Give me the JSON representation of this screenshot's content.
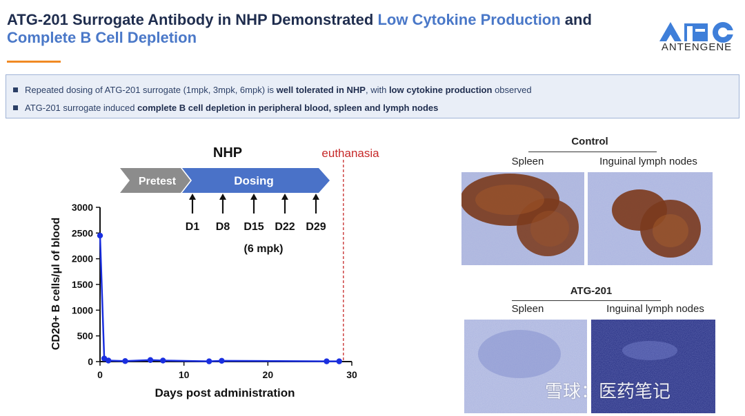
{
  "header": {
    "title_part1": "ATG-201 Surrogate Antibody in NHP Demonstrated ",
    "title_highlight1": "Low Cytokine Production",
    "title_part2": " and ",
    "title_highlight2": "Complete B Cell Depletion",
    "logo_text": "ANTENGENE",
    "accent_color": "#f08a24",
    "highlight_color": "#4a78c8"
  },
  "bullets": [
    {
      "pre": "Repeated dosing of ATG-201 surrogate (1mpk, 3mpk, 6mpk) is ",
      "bold1": "well tolerated in NHP",
      "mid": ", with ",
      "bold2": "low cytokine production",
      "post": " observed"
    },
    {
      "pre": "ATG-201 surrogate induced ",
      "bold1": "complete B cell depletion in peripheral blood, spleen and lymph nodes",
      "mid": "",
      "bold2": "",
      "post": ""
    }
  ],
  "diagram": {
    "species": "NHP",
    "phase1": "Pretest",
    "phase2": "Dosing",
    "euthanasia": "euthanasia",
    "doses": [
      "D1",
      "D8",
      "D15",
      "D22",
      "D29"
    ],
    "dose_note": "(6 mpk)"
  },
  "chart_data": {
    "type": "line",
    "xlabel": "Days post administration",
    "ylabel": "CD20+ B cells/μl of blood",
    "xlim": [
      0,
      30
    ],
    "ylim": [
      0,
      3000
    ],
    "xticks": [
      0,
      10,
      20,
      30
    ],
    "yticks": [
      0,
      500,
      1000,
      1500,
      2000,
      2500,
      3000
    ],
    "euthanasia_day": 29,
    "series": [
      {
        "x": [
          0,
          0.5,
          1,
          3,
          6,
          7.5,
          13,
          14.5,
          27,
          28.5
        ],
        "y": [
          2450,
          60,
          20,
          10,
          30,
          20,
          5,
          15,
          5,
          5
        ]
      }
    ],
    "line_color": "#1a2fe0",
    "euthanasia_color": "#c62828"
  },
  "histology": {
    "control_label": "Control",
    "treated_label": "ATG-201",
    "col1": "Spleen",
    "col2": "Inguinal lymph nodes"
  },
  "watermark": "雪球：医药笔记"
}
